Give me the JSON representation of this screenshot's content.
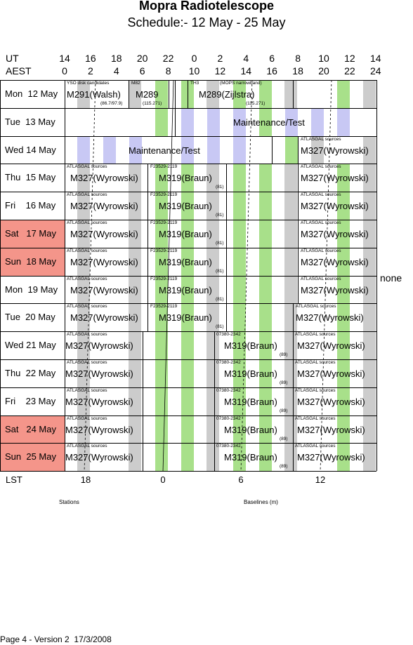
{
  "title": "Mopra Radiotelescope",
  "subtitle": "Schedule:- 12 May - 25 May",
  "header": {
    "ut_label": "UT",
    "aest_label": "AEST",
    "ut_ticks": [
      "14",
      "16",
      "18",
      "20",
      "22",
      "0",
      "2",
      "4",
      "6",
      "8",
      "10",
      "12",
      "14"
    ],
    "aest_ticks": [
      "0",
      "2",
      "4",
      "6",
      "8",
      "10",
      "12",
      "14",
      "16",
      "18",
      "20",
      "22",
      "24"
    ]
  },
  "days": [
    {
      "label": "Mon  12 May",
      "weekend": false
    },
    {
      "label": "Tue  13 May",
      "weekend": false
    },
    {
      "label": "Wed 14 May",
      "weekend": false
    },
    {
      "label": "Thu  15 May",
      "weekend": false
    },
    {
      "label": "Fri    16 May",
      "weekend": false
    },
    {
      "label": "Sat   17 May",
      "weekend": true
    },
    {
      "label": "Sun  18 May",
      "weekend": true
    },
    {
      "label": "Mon  19 May",
      "weekend": false
    },
    {
      "label": "Tue  20 May",
      "weekend": false
    },
    {
      "label": "Wed 21 May",
      "weekend": false
    },
    {
      "label": "Thu  22 May",
      "weekend": false
    },
    {
      "label": "Fri    23 May",
      "weekend": false
    },
    {
      "label": "Sat   24 May",
      "weekend": true
    },
    {
      "label": "Sun  25 May",
      "weekend": true
    }
  ],
  "blocks": {
    "mon12_a": {
      "big": "M291(Walsh)",
      "note": "YSO disk candidates",
      "sub": "(86.7/97.9)"
    },
    "mon12_b": {
      "big": "M289",
      "note": "M82",
      "sub": "(115.271)"
    },
    "mon12_c": {
      "big": "M289(Zijlstra)",
      "note": "TH3",
      "note2": "(MOPS narrowband)",
      "sub": "(115.271)"
    },
    "tue13": {
      "big": "Maintenance/Test"
    },
    "wed14_a": {
      "big": "Maintenance/Test"
    },
    "wed14_b": {
      "big": "M327(Wyrowski)",
      "note": "ATLASGAL sources"
    },
    "m327": {
      "big": "M327(Wyrowski)",
      "note": "ATLASGAL sources"
    },
    "m319a": {
      "big": "M319(Braun)",
      "note": "F23529-2119",
      "sub": "(81)"
    },
    "m319b": {
      "big": "M319(Braun)",
      "note": "07380-2342",
      "sub": "(89)"
    }
  },
  "none_label": "none",
  "lst": {
    "label": "LST",
    "ticks": [
      "18",
      "0",
      "6",
      "12"
    ]
  },
  "stations_label": "Stations",
  "baselines_label": "Baselines (m)",
  "footer": "Page 4 - Version 2  17/3/2008",
  "colors": {
    "green": "#a8e08a",
    "gray": "#cccccc",
    "lavender": "#c8c8f4",
    "weekend": "#f4958a",
    "grid": "#000000"
  }
}
